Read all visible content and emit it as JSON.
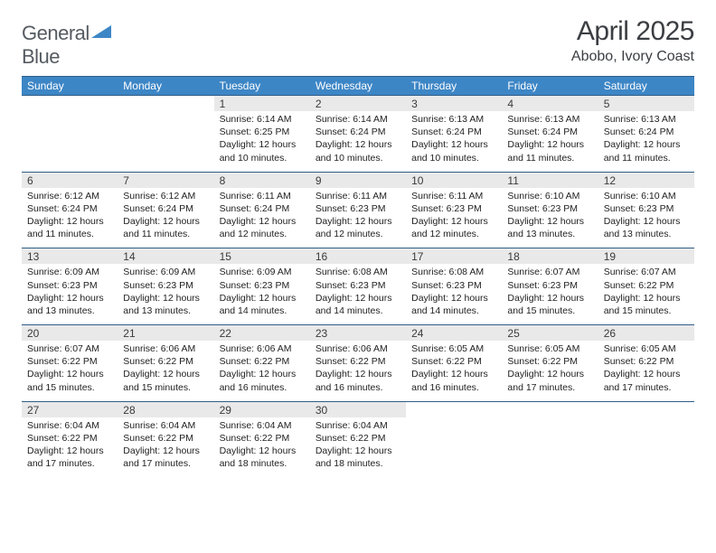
{
  "logo": {
    "text1": "General",
    "text2": "Blue",
    "brand_color": "#3d86c6",
    "text_color": "#555b61"
  },
  "title": "April 2025",
  "location": "Abobo, Ivory Coast",
  "colors": {
    "header_bg": "#3d86c6",
    "header_text": "#ffffff",
    "daynum_bg": "#e9e9e9",
    "border": "#2e5d87",
    "body_text": "#222222"
  },
  "weekdays": [
    "Sunday",
    "Monday",
    "Tuesday",
    "Wednesday",
    "Thursday",
    "Friday",
    "Saturday"
  ],
  "first_weekday_index": 2,
  "days": [
    {
      "n": 1,
      "sr": "6:14 AM",
      "ss": "6:25 PM",
      "dl": "12 hours and 10 minutes."
    },
    {
      "n": 2,
      "sr": "6:14 AM",
      "ss": "6:24 PM",
      "dl": "12 hours and 10 minutes."
    },
    {
      "n": 3,
      "sr": "6:13 AM",
      "ss": "6:24 PM",
      "dl": "12 hours and 10 minutes."
    },
    {
      "n": 4,
      "sr": "6:13 AM",
      "ss": "6:24 PM",
      "dl": "12 hours and 11 minutes."
    },
    {
      "n": 5,
      "sr": "6:13 AM",
      "ss": "6:24 PM",
      "dl": "12 hours and 11 minutes."
    },
    {
      "n": 6,
      "sr": "6:12 AM",
      "ss": "6:24 PM",
      "dl": "12 hours and 11 minutes."
    },
    {
      "n": 7,
      "sr": "6:12 AM",
      "ss": "6:24 PM",
      "dl": "12 hours and 11 minutes."
    },
    {
      "n": 8,
      "sr": "6:11 AM",
      "ss": "6:24 PM",
      "dl": "12 hours and 12 minutes."
    },
    {
      "n": 9,
      "sr": "6:11 AM",
      "ss": "6:23 PM",
      "dl": "12 hours and 12 minutes."
    },
    {
      "n": 10,
      "sr": "6:11 AM",
      "ss": "6:23 PM",
      "dl": "12 hours and 12 minutes."
    },
    {
      "n": 11,
      "sr": "6:10 AM",
      "ss": "6:23 PM",
      "dl": "12 hours and 13 minutes."
    },
    {
      "n": 12,
      "sr": "6:10 AM",
      "ss": "6:23 PM",
      "dl": "12 hours and 13 minutes."
    },
    {
      "n": 13,
      "sr": "6:09 AM",
      "ss": "6:23 PM",
      "dl": "12 hours and 13 minutes."
    },
    {
      "n": 14,
      "sr": "6:09 AM",
      "ss": "6:23 PM",
      "dl": "12 hours and 13 minutes."
    },
    {
      "n": 15,
      "sr": "6:09 AM",
      "ss": "6:23 PM",
      "dl": "12 hours and 14 minutes."
    },
    {
      "n": 16,
      "sr": "6:08 AM",
      "ss": "6:23 PM",
      "dl": "12 hours and 14 minutes."
    },
    {
      "n": 17,
      "sr": "6:08 AM",
      "ss": "6:23 PM",
      "dl": "12 hours and 14 minutes."
    },
    {
      "n": 18,
      "sr": "6:07 AM",
      "ss": "6:23 PM",
      "dl": "12 hours and 15 minutes."
    },
    {
      "n": 19,
      "sr": "6:07 AM",
      "ss": "6:22 PM",
      "dl": "12 hours and 15 minutes."
    },
    {
      "n": 20,
      "sr": "6:07 AM",
      "ss": "6:22 PM",
      "dl": "12 hours and 15 minutes."
    },
    {
      "n": 21,
      "sr": "6:06 AM",
      "ss": "6:22 PM",
      "dl": "12 hours and 15 minutes."
    },
    {
      "n": 22,
      "sr": "6:06 AM",
      "ss": "6:22 PM",
      "dl": "12 hours and 16 minutes."
    },
    {
      "n": 23,
      "sr": "6:06 AM",
      "ss": "6:22 PM",
      "dl": "12 hours and 16 minutes."
    },
    {
      "n": 24,
      "sr": "6:05 AM",
      "ss": "6:22 PM",
      "dl": "12 hours and 16 minutes."
    },
    {
      "n": 25,
      "sr": "6:05 AM",
      "ss": "6:22 PM",
      "dl": "12 hours and 17 minutes."
    },
    {
      "n": 26,
      "sr": "6:05 AM",
      "ss": "6:22 PM",
      "dl": "12 hours and 17 minutes."
    },
    {
      "n": 27,
      "sr": "6:04 AM",
      "ss": "6:22 PM",
      "dl": "12 hours and 17 minutes."
    },
    {
      "n": 28,
      "sr": "6:04 AM",
      "ss": "6:22 PM",
      "dl": "12 hours and 17 minutes."
    },
    {
      "n": 29,
      "sr": "6:04 AM",
      "ss": "6:22 PM",
      "dl": "12 hours and 18 minutes."
    },
    {
      "n": 30,
      "sr": "6:04 AM",
      "ss": "6:22 PM",
      "dl": "12 hours and 18 minutes."
    }
  ],
  "labels": {
    "sunrise": "Sunrise:",
    "sunset": "Sunset:",
    "daylight": "Daylight:"
  }
}
